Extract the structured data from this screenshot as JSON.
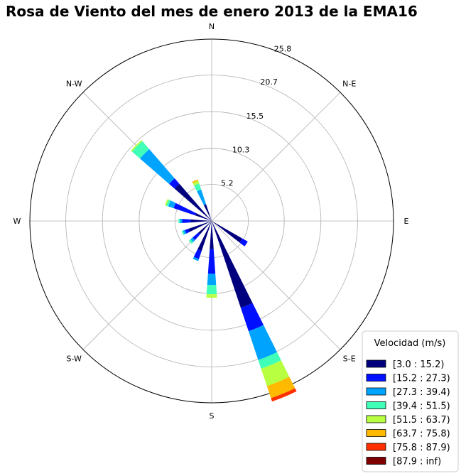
{
  "chart_data": {
    "type": "windrose",
    "title": "Rosa de Viento del mes de enero 2013 de la EMA16",
    "directions": [
      "N",
      "N-E",
      "E",
      "S-E",
      "S",
      "S-W",
      "W",
      "N-W"
    ],
    "radial_ticks": [
      "5.2",
      "10.3",
      "15.5",
      "20.7",
      "25.8"
    ],
    "radial_tick_values": [
      5.2,
      10.3,
      15.5,
      20.7,
      25.8
    ],
    "rmax": 25.8,
    "grid": true,
    "legend": {
      "title": "Velocidad (m/s)",
      "position": "bottom-right",
      "bins": [
        "[3.0 : 15.2)",
        "[15.2 : 27.3)",
        "[27.3 : 39.4)",
        "[39.4 : 51.5)",
        "[51.5 : 63.7)",
        "[63.7 : 75.8)",
        "[75.8 : 87.9)",
        "[87.9 : inf)"
      ],
      "colors": [
        "#00007f",
        "#0010ff",
        "#00a4ff",
        "#40ffb7",
        "#b7ff40",
        "#ffb900",
        "#ff3000",
        "#7f0000"
      ]
    },
    "sector_width_deg": 8,
    "sectors": [
      {
        "bearing": 0,
        "values": [
          0,
          0,
          0,
          0,
          0,
          0,
          0,
          0
        ]
      },
      {
        "bearing": 11.25,
        "values": [
          0,
          0,
          0,
          0,
          0,
          0,
          0,
          0
        ]
      },
      {
        "bearing": 22.5,
        "values": [
          0,
          0,
          0,
          0,
          0,
          0,
          0,
          0
        ]
      },
      {
        "bearing": 33.75,
        "values": [
          0,
          0,
          0,
          0,
          0,
          0,
          0,
          0
        ]
      },
      {
        "bearing": 45,
        "values": [
          0,
          0,
          0,
          0,
          0,
          0,
          0,
          0
        ]
      },
      {
        "bearing": 56.25,
        "values": [
          0,
          0,
          0,
          0,
          0,
          0,
          0,
          0
        ]
      },
      {
        "bearing": 67.5,
        "values": [
          0,
          0,
          0,
          0,
          0,
          0,
          0,
          0
        ]
      },
      {
        "bearing": 78.75,
        "values": [
          0,
          0,
          0,
          0,
          0,
          0,
          0,
          0
        ]
      },
      {
        "bearing": 90,
        "values": [
          0,
          0,
          0,
          0,
          0,
          0,
          0,
          0
        ]
      },
      {
        "bearing": 101.25,
        "values": [
          0,
          0,
          0,
          0,
          0,
          0,
          0,
          0
        ]
      },
      {
        "bearing": 112.5,
        "values": [
          0,
          0,
          0,
          0,
          0,
          0,
          0,
          0
        ]
      },
      {
        "bearing": 123.75,
        "values": [
          5.0,
          0.9,
          0,
          0,
          0,
          0,
          0,
          0
        ]
      },
      {
        "bearing": 135,
        "values": [
          0,
          0,
          0,
          0,
          0,
          0,
          0,
          0
        ]
      },
      {
        "bearing": 146.25,
        "values": [
          0,
          0,
          0,
          0,
          0,
          0,
          0,
          0
        ]
      },
      {
        "bearing": 157.5,
        "values": [
          13.0,
          3.5,
          4.3,
          1.3,
          2.6,
          1.8,
          0.5,
          0
        ]
      },
      {
        "bearing": 168.75,
        "values": [
          0,
          0,
          0,
          0,
          0,
          0,
          0,
          0
        ]
      },
      {
        "bearing": 180,
        "values": [
          4.0,
          3.5,
          1.6,
          1.3,
          0.5,
          0,
          0,
          0
        ]
      },
      {
        "bearing": 191.25,
        "values": [
          0,
          0,
          0,
          0,
          0,
          0,
          0,
          0
        ]
      },
      {
        "bearing": 202.5,
        "values": [
          4.5,
          1.2,
          0.3,
          0,
          0,
          0,
          0,
          0
        ]
      },
      {
        "bearing": 213.75,
        "values": [
          0,
          0,
          0,
          0,
          0,
          0,
          0,
          0
        ]
      },
      {
        "bearing": 225,
        "values": [
          2.5,
          1.1,
          0.4,
          0.3,
          0,
          0,
          0,
          0
        ]
      },
      {
        "bearing": 236.25,
        "values": [
          0,
          0,
          0,
          0,
          0,
          0,
          0,
          0
        ]
      },
      {
        "bearing": 247.5,
        "values": [
          3.5,
          0.5,
          0.3,
          0.2,
          0,
          0,
          0,
          0
        ]
      },
      {
        "bearing": 258.75,
        "values": [
          0,
          0,
          0,
          0,
          0,
          0,
          0,
          0
        ]
      },
      {
        "bearing": 270,
        "values": [
          3.0,
          1.2,
          0.3,
          0.2,
          0,
          0,
          0,
          0
        ]
      },
      {
        "bearing": 281.25,
        "values": [
          0,
          0,
          0,
          0,
          0,
          0,
          0,
          0
        ]
      },
      {
        "bearing": 292.5,
        "values": [
          2.5,
          3.2,
          0.8,
          0.3,
          0.2,
          0,
          0,
          0
        ]
      },
      {
        "bearing": 303.75,
        "values": [
          0,
          0,
          0,
          0,
          0,
          0,
          0,
          0
        ]
      },
      {
        "bearing": 315,
        "values": [
          7.0,
          1.0,
          5.5,
          1.5,
          0.2,
          0,
          0,
          0
        ]
      },
      {
        "bearing": 326.25,
        "values": [
          0,
          0,
          0,
          0,
          0,
          0,
          0,
          0
        ]
      },
      {
        "bearing": 337.5,
        "values": [
          2.5,
          0,
          2.2,
          0.9,
          0.4,
          0.2,
          0,
          0
        ]
      },
      {
        "bearing": 348.75,
        "values": [
          0,
          0,
          0,
          0,
          0,
          0,
          0,
          0
        ]
      }
    ]
  }
}
